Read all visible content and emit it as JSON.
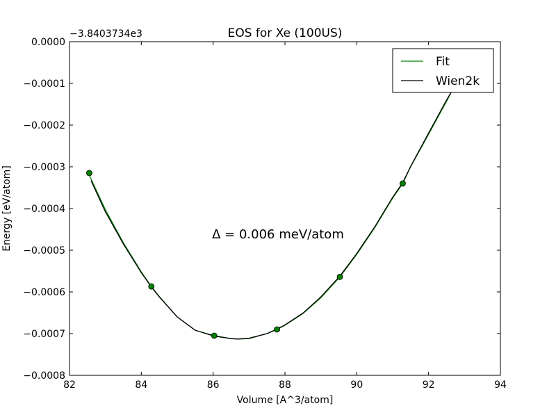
{
  "chart_data": {
    "type": "line",
    "title": "EOS for Xe (100US)",
    "xlabel": "Volume [A^3/atom]",
    "ylabel": "Energy [eV/atom]",
    "offset_label": "−3.8403734e3",
    "annotation": "Δ = 0.006 meV/atom",
    "xlim": [
      82,
      94
    ],
    "ylim": [
      -0.0008,
      0.0
    ],
    "x_ticks": [
      {
        "value": 82,
        "label": "82"
      },
      {
        "value": 84,
        "label": "84"
      },
      {
        "value": 86,
        "label": "86"
      },
      {
        "value": 88,
        "label": "88"
      },
      {
        "value": 90,
        "label": "90"
      },
      {
        "value": 92,
        "label": "92"
      },
      {
        "value": 94,
        "label": "94"
      }
    ],
    "y_ticks": [
      {
        "value": 0.0,
        "label": "0.0000"
      },
      {
        "value": -0.0001,
        "label": "−0.0001"
      },
      {
        "value": -0.0002,
        "label": "−0.0002"
      },
      {
        "value": -0.0003,
        "label": "−0.0003"
      },
      {
        "value": -0.0004,
        "label": "−0.0004"
      },
      {
        "value": -0.0005,
        "label": "−0.0005"
      },
      {
        "value": -0.0006,
        "label": "−0.0006"
      },
      {
        "value": -0.0007,
        "label": "−0.0007"
      },
      {
        "value": -0.0008,
        "label": "−0.0008"
      }
    ],
    "grid": false,
    "legend_position": "top-right",
    "points": {
      "color": "#008000",
      "x": [
        82.55,
        84.28,
        86.03,
        87.78,
        89.53,
        91.28
      ],
      "y": [
        -0.000315,
        -0.000587,
        -0.000705,
        -0.00069,
        -0.000564,
        -0.00034
      ]
    },
    "series": [
      {
        "name": "Fit",
        "color": "#008000",
        "x": [
          82.55,
          83.0,
          83.5,
          84.0,
          84.28,
          84.5,
          85.0,
          85.5,
          86.03,
          86.5,
          86.7,
          87.0,
          87.5,
          87.78,
          88.0,
          88.5,
          89.0,
          89.53,
          90.0,
          90.5,
          91.0,
          91.28,
          91.5,
          92.0,
          92.5,
          92.7
        ],
        "y": [
          -0.00032,
          -0.000403,
          -0.000482,
          -0.000552,
          -0.000587,
          -0.000611,
          -0.00066,
          -0.000692,
          -0.000705,
          -0.000712,
          -0.000713,
          -0.000712,
          -0.0007,
          -0.00069,
          -0.00068,
          -0.000652,
          -0.000614,
          -0.000564,
          -0.00051,
          -0.000446,
          -0.000375,
          -0.00034,
          -0.0003,
          -0.000222,
          -0.000143,
          -0.00011
        ]
      },
      {
        "name": "Wien2k",
        "color": "#000000",
        "x": [
          82.6,
          83.0,
          83.5,
          84.0,
          84.28,
          84.5,
          85.0,
          85.5,
          86.03,
          86.5,
          86.7,
          87.0,
          87.5,
          87.78,
          88.0,
          88.5,
          89.0,
          89.53,
          90.0,
          90.5,
          91.0,
          91.28,
          91.5,
          92.0,
          92.5,
          92.65
        ],
        "y": [
          -0.000333,
          -0.000408,
          -0.000485,
          -0.000554,
          -0.000588,
          -0.000612,
          -0.00066,
          -0.000692,
          -0.000706,
          -0.000712,
          -0.000713,
          -0.000711,
          -0.0007,
          -0.000689,
          -0.000679,
          -0.000651,
          -0.000612,
          -0.000562,
          -0.000508,
          -0.000444,
          -0.000373,
          -0.000338,
          -0.000299,
          -0.000219,
          -0.00014,
          -0.000118
        ]
      }
    ]
  }
}
